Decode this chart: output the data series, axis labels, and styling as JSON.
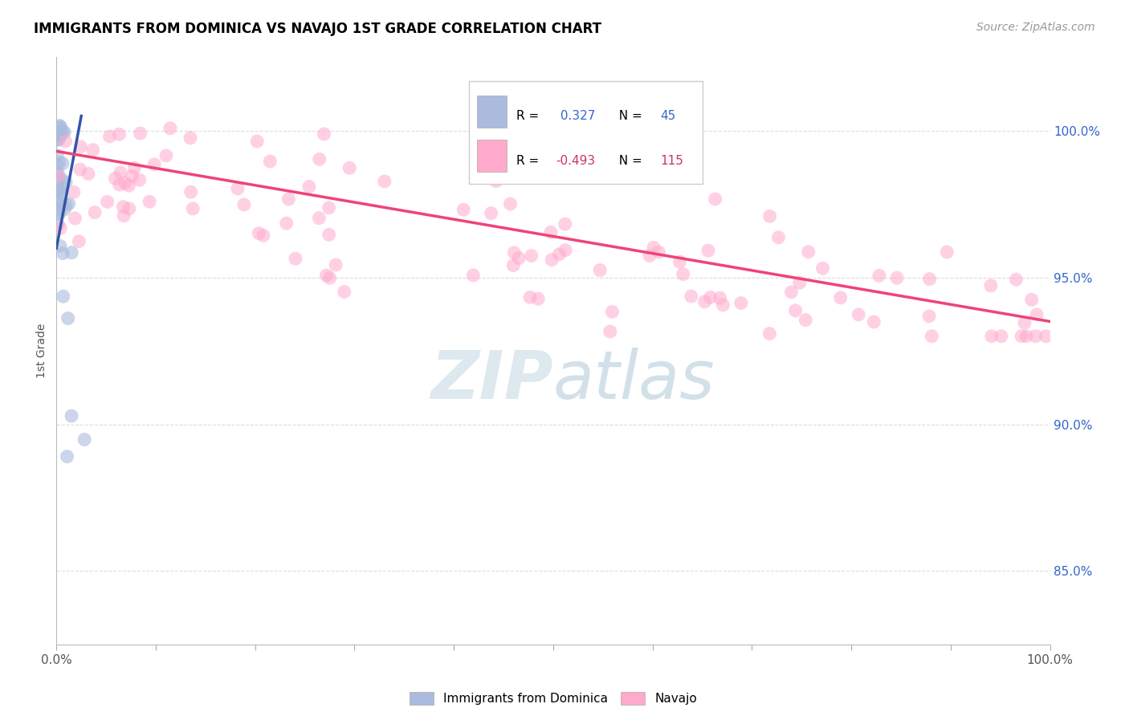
{
  "title": "IMMIGRANTS FROM DOMINICA VS NAVAJO 1ST GRADE CORRELATION CHART",
  "source": "Source: ZipAtlas.com",
  "ylabel": "1st Grade",
  "r_blue": 0.327,
  "n_blue": 45,
  "r_pink": -0.493,
  "n_pink": 115,
  "blue_color": "#aabbdd",
  "pink_color": "#ffaacc",
  "blue_line_color": "#3355aa",
  "pink_line_color": "#ee4477",
  "legend_label_blue": "Immigrants from Dominica",
  "legend_label_pink": "Navajo",
  "xlim_min": 0.0,
  "xlim_max": 1.0,
  "ylim_min": 0.825,
  "ylim_max": 1.025,
  "yticks": [
    0.85,
    0.9,
    0.95,
    1.0
  ],
  "ytick_labels": [
    "85.0%",
    "90.0%",
    "95.0%",
    "100.0%"
  ],
  "grid_color": "#cccccc",
  "title_fontsize": 12,
  "watermark_text": "ZIPatlas",
  "watermark_color": "#ccd9e8",
  "blue_n_label_color": "#3366cc",
  "pink_n_label_color": "#cc3366"
}
